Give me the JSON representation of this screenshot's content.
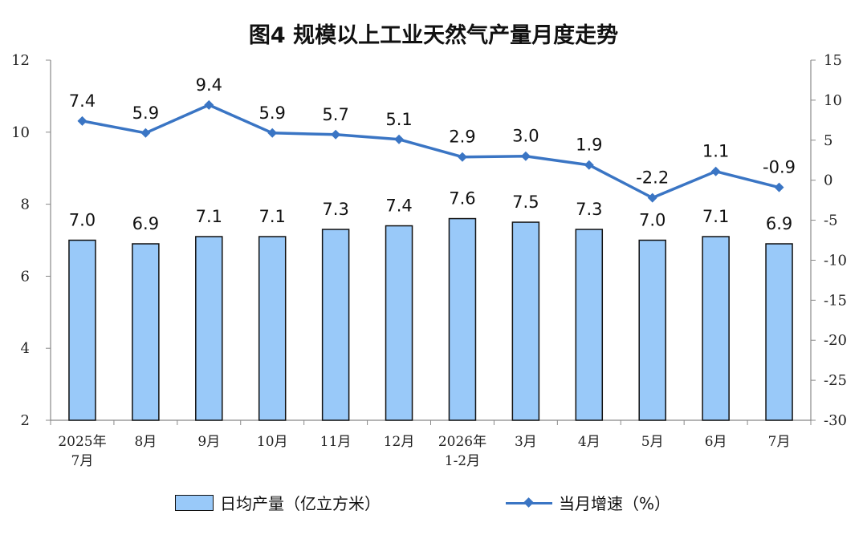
{
  "chart_data": {
    "type": "bar+line",
    "title": "图4  规模以上工业天然气产量月度走势",
    "categories": [
      [
        "2025年",
        "7月"
      ],
      [
        "8月"
      ],
      [
        "9月"
      ],
      [
        "10月"
      ],
      [
        "11月"
      ],
      [
        "12月"
      ],
      [
        "2026年",
        "1-2月"
      ],
      [
        "3月"
      ],
      [
        "4月"
      ],
      [
        "5月"
      ],
      [
        "6月"
      ],
      [
        "7月"
      ]
    ],
    "series": [
      {
        "name": "日均产量（亿立方米）",
        "type": "bar",
        "axis": "left",
        "color": "#99c9f9",
        "values": [
          7.0,
          6.9,
          7.1,
          7.1,
          7.3,
          7.4,
          7.6,
          7.5,
          7.3,
          7.0,
          7.1,
          6.9
        ],
        "labels": [
          "7.0",
          "6.9",
          "7.1",
          "7.1",
          "7.3",
          "7.4",
          "7.6",
          "7.5",
          "7.3",
          "7.0",
          "7.1",
          "6.9"
        ]
      },
      {
        "name": "当月增速（%）",
        "type": "line",
        "axis": "right",
        "color": "#3a75c4",
        "values": [
          7.4,
          5.9,
          9.4,
          5.9,
          5.7,
          5.1,
          2.9,
          3.0,
          1.9,
          -2.2,
          1.1,
          -0.9
        ],
        "labels": [
          "7.4",
          "5.9",
          "9.4",
          "5.9",
          "5.7",
          "5.1",
          "2.9",
          "3.0",
          "1.9",
          "-2.2",
          "1.1",
          "-0.9"
        ]
      }
    ],
    "y_left": {
      "min": 2,
      "max": 12,
      "ticks": [
        "2",
        "4",
        "6",
        "8",
        "10",
        "12"
      ]
    },
    "y_right": {
      "min": -30,
      "max": 15,
      "ticks": [
        "-30",
        "-25",
        "-20",
        "-15",
        "-10",
        "-5",
        "0",
        "5",
        "10",
        "15"
      ]
    },
    "grid": false,
    "legend_position": "bottom"
  }
}
